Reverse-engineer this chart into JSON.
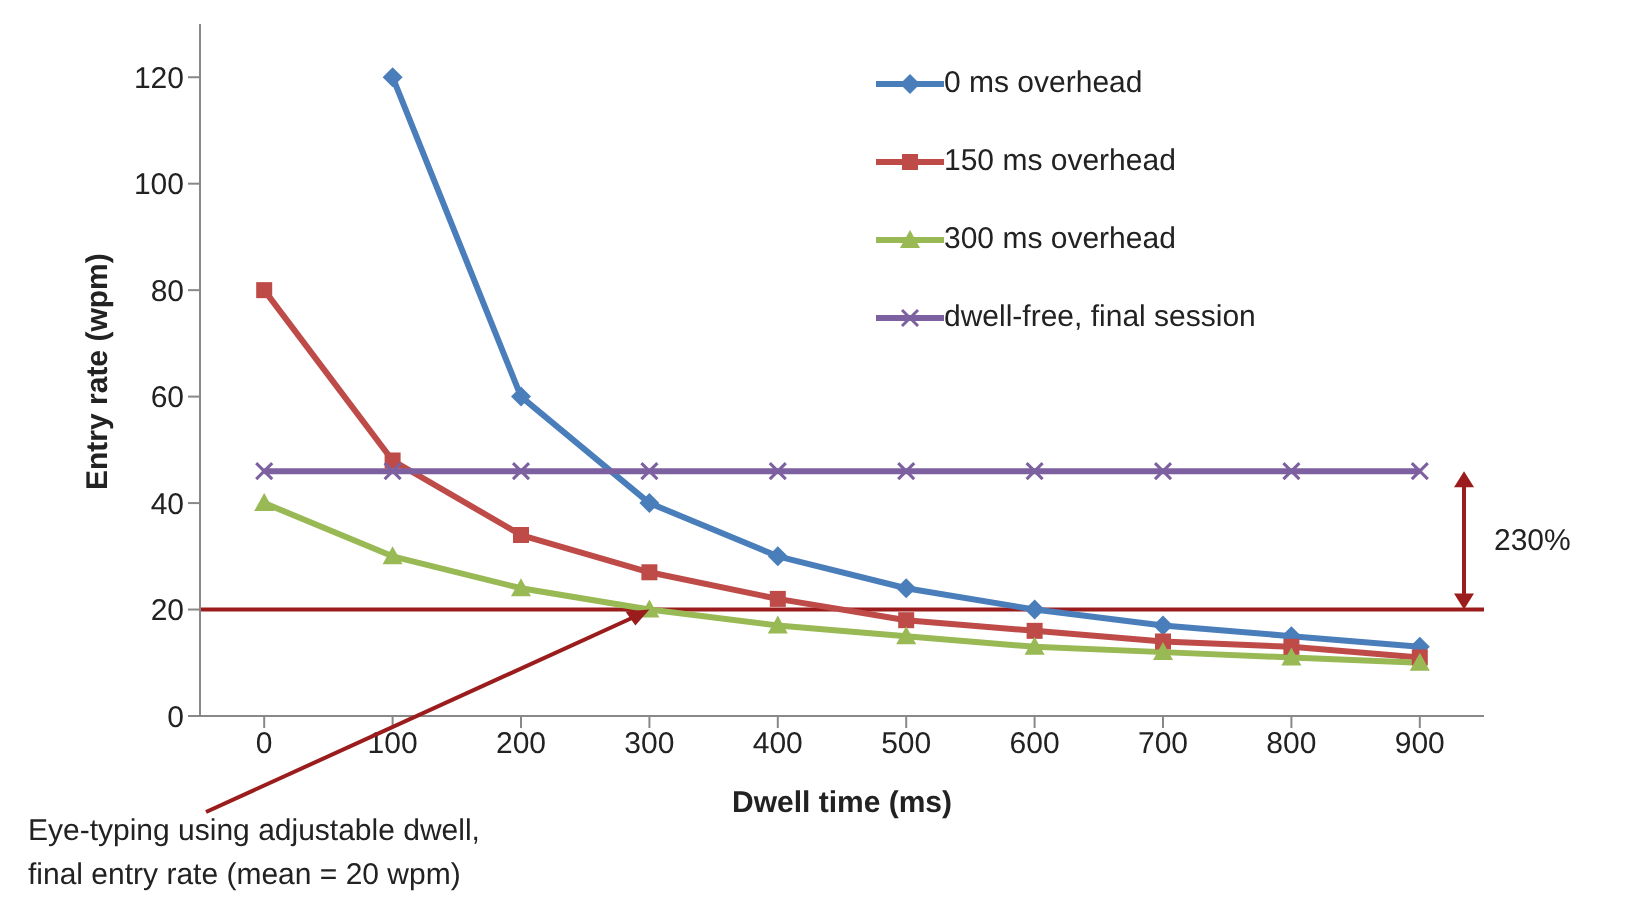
{
  "chart_data": {
    "type": "line",
    "xlabel": "Dwell time (ms)",
    "ylabel": "Entry rate (wpm)",
    "x": [
      0,
      100,
      200,
      300,
      400,
      500,
      600,
      700,
      800,
      900
    ],
    "xlim": [
      -50,
      950
    ],
    "xticks": [
      0,
      100,
      200,
      300,
      400,
      500,
      600,
      700,
      800,
      900
    ],
    "ylim": [
      0,
      130
    ],
    "yticks": [
      0,
      20,
      40,
      60,
      80,
      100,
      120
    ],
    "grid": false,
    "legend": "top right",
    "line_style": "solid",
    "series": [
      {
        "name": "0 ms overhead",
        "color": "#4a7ebb",
        "marker": "diamond",
        "values": [
          null,
          120,
          60,
          40,
          30,
          24,
          20,
          17,
          15,
          13
        ]
      },
      {
        "name": "150 ms overhead",
        "color": "#be4b48",
        "marker": "square",
        "values": [
          80,
          48,
          34,
          27,
          22,
          18,
          16,
          14,
          13,
          11
        ]
      },
      {
        "name": "300 ms overhead",
        "color": "#98b954",
        "marker": "triangle",
        "values": [
          40,
          30,
          24,
          20,
          17,
          15,
          13,
          12,
          11,
          10
        ]
      },
      {
        "name": "dwell-free, final session",
        "color": "#7d60a0",
        "marker": "cross",
        "values": [
          46,
          46,
          46,
          46,
          46,
          46,
          46,
          46,
          46,
          46
        ]
      }
    ],
    "ref_lines": [
      {
        "axis": "y",
        "value": 20,
        "color": "#9b1c1c"
      }
    ],
    "annotations": [
      {
        "text": "Eye-typing using adjustable dwell,\nfinal entry rate (mean = 20 wpm)",
        "x": 300,
        "y": 20
      },
      "230%"
    ]
  }
}
